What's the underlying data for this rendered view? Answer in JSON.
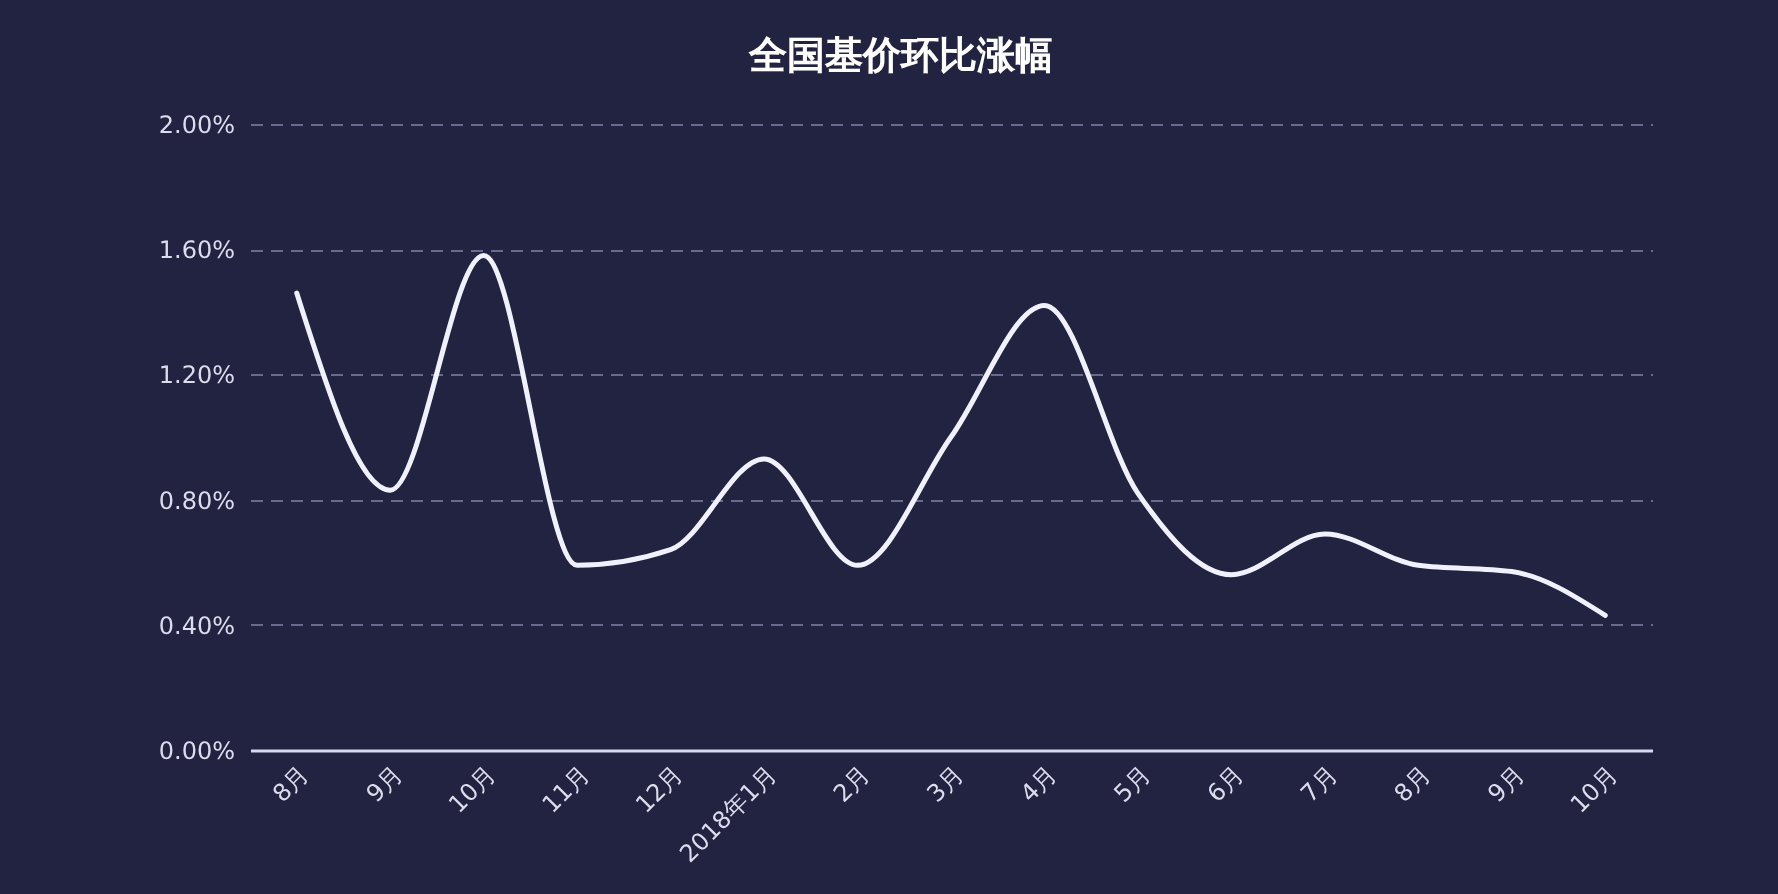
{
  "chart_data": {
    "type": "line",
    "title": "全国基价环比涨幅",
    "categories": [
      "8月",
      "9月",
      "10月",
      "11月",
      "12月",
      "2018年1月",
      "2月",
      "3月",
      "4月",
      "5月",
      "6月",
      "7月",
      "8月",
      "9月",
      "10月"
    ],
    "values": [
      1.46,
      0.83,
      1.58,
      0.59,
      0.64,
      0.93,
      0.59,
      1.0,
      1.42,
      0.82,
      0.56,
      0.69,
      0.59,
      0.57,
      0.43
    ],
    "color": "#f0f0ff",
    "marker": "none",
    "line_style": "solid",
    "grid": "y",
    "ylim": [
      0,
      2
    ],
    "yticks": [
      {
        "value": 0,
        "label": "0.00%"
      },
      {
        "value": 0.4,
        "label": "0.40%"
      },
      {
        "value": 0.8,
        "label": "0.80%"
      },
      {
        "value": 1.2,
        "label": "1.20%"
      },
      {
        "value": 1.6,
        "label": "1.60%"
      },
      {
        "value": 2,
        "label": "2.00%"
      }
    ]
  }
}
